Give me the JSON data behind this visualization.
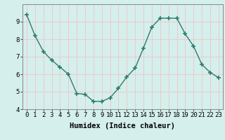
{
  "x": [
    0,
    1,
    2,
    3,
    4,
    5,
    6,
    7,
    8,
    9,
    10,
    11,
    12,
    13,
    14,
    15,
    16,
    17,
    18,
    19,
    20,
    21,
    22,
    23
  ],
  "y": [
    9.4,
    8.2,
    7.3,
    6.8,
    6.4,
    6.0,
    4.9,
    4.85,
    4.45,
    4.45,
    4.65,
    5.2,
    5.85,
    6.35,
    7.5,
    8.7,
    9.2,
    9.2,
    9.2,
    8.3,
    7.6,
    6.55,
    6.1,
    5.8
  ],
  "xlabel": "Humidex (Indice chaleur)",
  "ylim": [
    4,
    10
  ],
  "xlim": [
    -0.5,
    23.5
  ],
  "yticks": [
    4,
    5,
    6,
    7,
    8,
    9
  ],
  "xticks": [
    0,
    1,
    2,
    3,
    4,
    5,
    6,
    7,
    8,
    9,
    10,
    11,
    12,
    13,
    14,
    15,
    16,
    17,
    18,
    19,
    20,
    21,
    22,
    23
  ],
  "line_color": "#2e7d6e",
  "marker": "+",
  "bg_color": "#d4efec",
  "grid_color": "#f0c8c8",
  "tick_label_fontsize": 6.5,
  "xlabel_fontsize": 7.5
}
